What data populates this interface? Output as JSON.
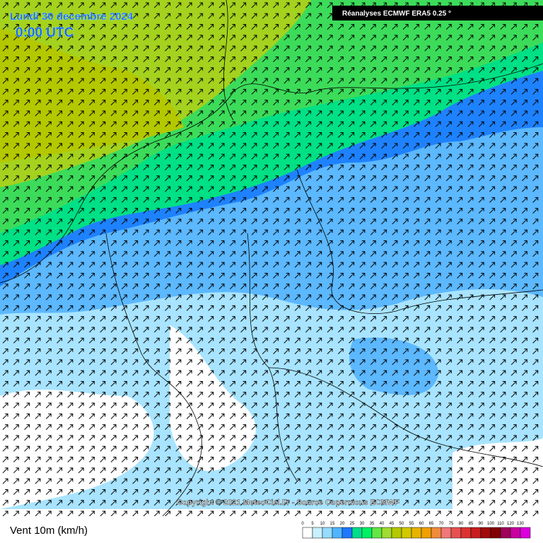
{
  "header": {
    "title": "Lundi 30 decembre 2024",
    "time": "0:00 UTC",
    "source": "Réanalyses ECMWF ERA5 0.25 °"
  },
  "copyright": "Copyright © 2021 MeteoCiel.Fr - Source Copernicus ECMWF",
  "footer": {
    "variable": "Vent 10m (km/h)"
  },
  "legend": {
    "labels": [
      0,
      5,
      10,
      15,
      20,
      25,
      30,
      35,
      40,
      45,
      50,
      55,
      60,
      65,
      70,
      75,
      80,
      85,
      90,
      100,
      110,
      120,
      130
    ],
    "colors": [
      "#ffffff",
      "#c8f0ff",
      "#96dcff",
      "#50b4ff",
      "#1e78ff",
      "#00dc8c",
      "#00f064",
      "#64e646",
      "#a0dc32",
      "#b4c800",
      "#d2c800",
      "#e6b400",
      "#f0a000",
      "#f08c3c",
      "#f07878",
      "#e65050",
      "#dc3232",
      "#c81e1e",
      "#a00a0a",
      "#820000",
      "#a0005a",
      "#c800a0",
      "#dc00dc"
    ]
  }
}
